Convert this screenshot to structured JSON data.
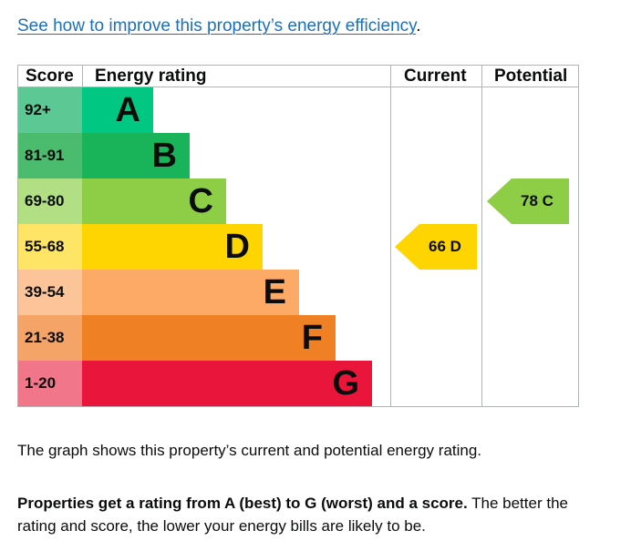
{
  "link": {
    "text": "See how to improve this property’s energy efficiency",
    "suffix": "."
  },
  "table": {
    "headers": {
      "score": "Score",
      "rating": "Energy rating",
      "current": "Current",
      "potential": "Potential"
    },
    "bands": [
      {
        "score": "92+",
        "letter": "A",
        "score_color": "#5cc995",
        "band_color": "#00c781"
      },
      {
        "score": "81-91",
        "letter": "B",
        "score_color": "#4bbb6e",
        "band_color": "#19b459"
      },
      {
        "score": "69-80",
        "letter": "C",
        "score_color": "#b3df84",
        "band_color": "#8dce46"
      },
      {
        "score": "55-68",
        "letter": "D",
        "score_color": "#ffe566",
        "band_color": "#ffd500"
      },
      {
        "score": "39-54",
        "letter": "E",
        "score_color": "#fcc599",
        "band_color": "#fcaa65"
      },
      {
        "score": "21-38",
        "letter": "F",
        "score_color": "#f4a466",
        "band_color": "#ef8023"
      },
      {
        "score": "1-20",
        "letter": "G",
        "score_color": "#f27689",
        "band_color": "#e9153b"
      }
    ],
    "current": {
      "label": "66 D",
      "value": 66,
      "band": "D",
      "color": "#ffd500"
    },
    "potential": {
      "label": "78 C",
      "value": 78,
      "band": "C",
      "color": "#8dce46"
    }
  },
  "caption": "The graph shows this property’s current and potential energy rating.",
  "explanation": {
    "bold": "Properties get a rating from A (best) to G (worst) and a score.",
    "rest": " The better the rating and score, the lower your energy bills are likely to be."
  }
}
